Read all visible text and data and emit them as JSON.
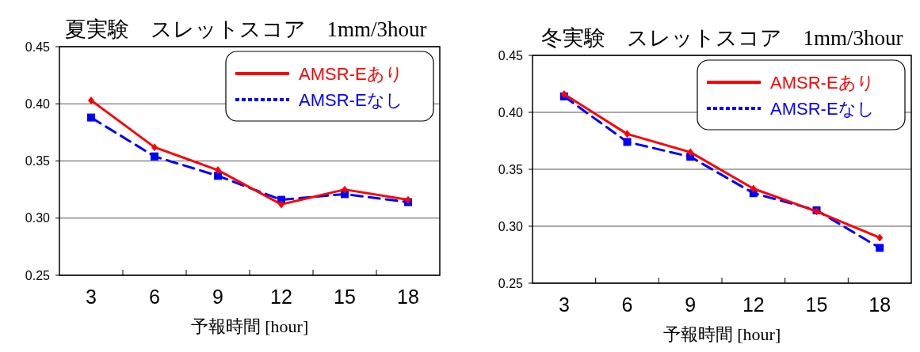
{
  "chart_data": [
    {
      "type": "line",
      "title": "夏実験　スレットスコア　1mm/3hour",
      "xlabel": "予報時間 [hour]",
      "categories": [
        "3",
        "6",
        "9",
        "12",
        "15",
        "18"
      ],
      "ylim": [
        0.25,
        0.45
      ],
      "yticks": [
        {
          "value": 0.25,
          "label": "0.25"
        },
        {
          "value": 0.3,
          "label": "0.30"
        },
        {
          "value": 0.35,
          "label": "0.35"
        },
        {
          "value": 0.4,
          "label": "0.40"
        },
        {
          "value": 0.45,
          "label": "0.45"
        }
      ],
      "grid": "y",
      "legend": "top right",
      "series": [
        {
          "name": "AMSR-Eあり",
          "color": "#ff0000",
          "marker": "diamond",
          "line_style": "solid",
          "values": [
            0.403,
            0.362,
            0.342,
            0.312,
            0.325,
            0.316
          ]
        },
        {
          "name": "AMSR-Eなし",
          "color": "#0000ff",
          "marker": "square",
          "line_style": "dashed",
          "values": [
            0.388,
            0.354,
            0.337,
            0.316,
            0.321,
            0.314
          ]
        }
      ]
    },
    {
      "type": "line",
      "title": "冬実験　スレットスコア　1mm/3hour",
      "xlabel": "予報時間 [hour]",
      "categories": [
        "3",
        "6",
        "9",
        "12",
        "15",
        "18"
      ],
      "ylim": [
        0.25,
        0.45
      ],
      "yticks": [
        {
          "value": 0.25,
          "label": "0.25"
        },
        {
          "value": 0.3,
          "label": "0.30"
        },
        {
          "value": 0.35,
          "label": "0.35"
        },
        {
          "value": 0.4,
          "label": "0.40"
        },
        {
          "value": 0.45,
          "label": "0.45"
        }
      ],
      "grid": "y",
      "legend": "top right",
      "series": [
        {
          "name": "AMSR-Eあり",
          "color": "#ff0000",
          "marker": "diamond",
          "line_style": "solid",
          "values": [
            0.416,
            0.381,
            0.365,
            0.333,
            0.313,
            0.29
          ]
        },
        {
          "name": "AMSR-Eなし",
          "color": "#0000ff",
          "marker": "square",
          "line_style": "dashed",
          "values": [
            0.414,
            0.374,
            0.361,
            0.329,
            0.314,
            0.281
          ]
        }
      ]
    }
  ]
}
